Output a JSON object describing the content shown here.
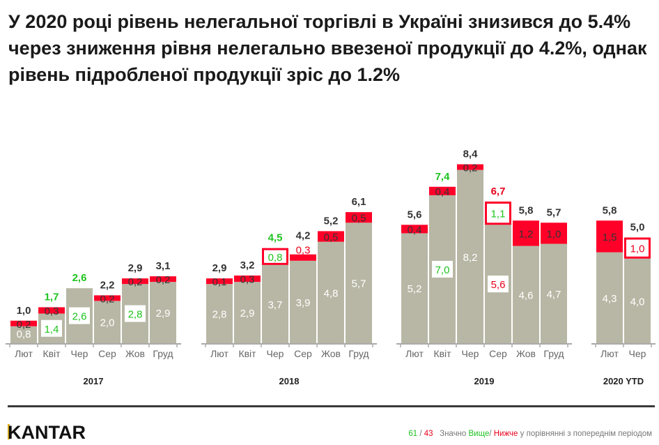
{
  "title": "У 2020 році рівень нелегальної торгівлі в Україні знизився до 5.4% через зниження рівня нелегально ввезеної продукції до 4.2%, однак рівень підробленої продукції зріс до 1.2%",
  "colors": {
    "base": "#b8b7a5",
    "illegal": "#ff0028",
    "higher": "#1ec31e",
    "lower": "#e8001c",
    "text": "#333333"
  },
  "chart_data": {
    "type": "bar",
    "stacked": true,
    "groups": [
      {
        "label": "2017",
        "bars": [
          {
            "month": "Лют",
            "base": "0,8",
            "illegal": "0,2",
            "total": "1,0"
          },
          {
            "month": "Квіт",
            "base": "1,4",
            "base_sig": "higher",
            "illegal": "0,3",
            "total": "1,7",
            "total_sig": "higher"
          },
          {
            "month": "Чер",
            "base": "2,6",
            "base_sig": "higher",
            "illegal": null,
            "total": "2,6",
            "total_sig": "higher"
          },
          {
            "month": "Сер",
            "base": "2,0",
            "illegal": "0,2",
            "total": "2,2"
          },
          {
            "month": "Жов",
            "base": "2,8",
            "base_sig": "higher",
            "illegal": "0,2",
            "total": "2,9"
          },
          {
            "month": "Груд",
            "base": "2,9",
            "illegal": "0,2",
            "total": "3,1"
          }
        ]
      },
      {
        "label": "2018",
        "bars": [
          {
            "month": "Лют",
            "base": "2,8",
            "illegal": "0,1",
            "total": "2,9"
          },
          {
            "month": "Квіт",
            "base": "2,9",
            "illegal": "0,3",
            "total": "3,2"
          },
          {
            "month": "Чер",
            "base": "3,7",
            "illegal": "0,8",
            "illegal_sig": "higher",
            "total": "4,5",
            "total_sig": "higher"
          },
          {
            "month": "Сер",
            "base": "3,9",
            "illegal": "0,3",
            "illegal_sig": "lower-text",
            "total": "4,2"
          },
          {
            "month": "Жов",
            "base": "4,8",
            "illegal": "0,5",
            "total": "5,2"
          },
          {
            "month": "Груд",
            "base": "5,7",
            "illegal": "0,5",
            "total": "6,1"
          }
        ]
      },
      {
        "label": "2019",
        "bars": [
          {
            "month": "Лют",
            "base": "5,2",
            "illegal": "0,4",
            "total": "5,6"
          },
          {
            "month": "Квіт",
            "base": "7,0",
            "base_sig": "higher",
            "illegal": "0,4",
            "total": "7,4",
            "total_sig": "higher"
          },
          {
            "month": "Чер",
            "base": "8,2",
            "illegal": "0,2",
            "total": "8,4"
          },
          {
            "month": "Сер",
            "base": "5,6",
            "base_sig": "lower",
            "illegal": "1,1",
            "illegal_sig": "higher",
            "total": "6,7",
            "total_sig": "lower"
          },
          {
            "month": "Жов",
            "base": "4,6",
            "illegal": "1,2",
            "total": "5,8"
          },
          {
            "month": "Груд",
            "base": "4,7",
            "illegal": "1,0",
            "total": "5,7"
          }
        ]
      },
      {
        "label": "2020 YTD",
        "bars": [
          {
            "month": "Лют",
            "base": "4,3",
            "illegal": "1,5",
            "total": "5,8"
          },
          {
            "month": "Чер",
            "base": "4,0",
            "illegal": "1,0",
            "illegal_sig": "lower",
            "total": "5,0"
          }
        ]
      }
    ]
  },
  "logo": "KANTAR",
  "legend": {
    "higher_count": "61",
    "sep": "/",
    "lower_count": "43",
    "prefix": "Значно",
    "higher": "Вище",
    "slash": "/",
    "lower": "Нижче",
    "suffix": "у порівнянні з попереднім періодом"
  }
}
